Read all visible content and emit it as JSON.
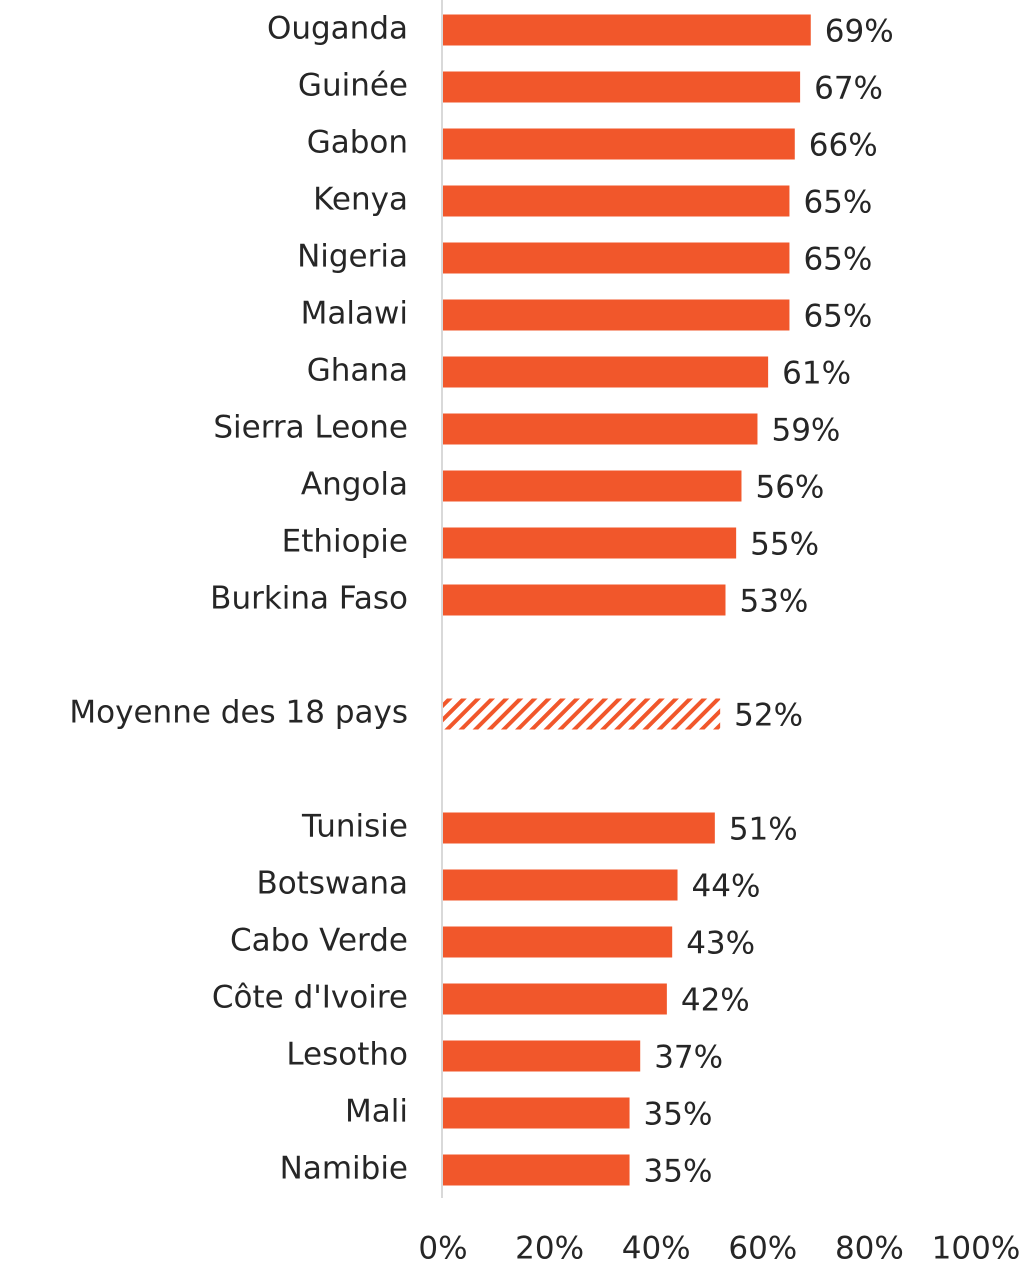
{
  "chart_data": {
    "type": "hbar",
    "categories": [
      "Ouganda",
      "Guinée",
      "Gabon",
      "Kenya",
      "Nigeria",
      "Malawi",
      "Ghana",
      "Sierra Leone",
      "Angola",
      "Ethiopie",
      "Burkina Faso",
      null,
      "Moyenne des 18 pays",
      null,
      "Tunisie",
      "Botswana",
      "Cabo Verde",
      "Côte d'Ivoire",
      "Lesotho",
      "Mali",
      "Namibie"
    ],
    "values": [
      69,
      67,
      66,
      65,
      65,
      65,
      61,
      59,
      56,
      55,
      53,
      null,
      52,
      null,
      51,
      44,
      43,
      42,
      37,
      35,
      35
    ],
    "value_labels": [
      "69%",
      "67%",
      "66%",
      "65%",
      "65%",
      "65%",
      "61%",
      "59%",
      "56%",
      "55%",
      "53%",
      null,
      "52%",
      null,
      "51%",
      "44%",
      "43%",
      "42%",
      "37%",
      "35%",
      "35%"
    ],
    "color": "#f1572b",
    "hatched_categories": [
      "Moyenne des 18 pays"
    ],
    "xlim": [
      0,
      100
    ],
    "xticks": [
      {
        "value": 0,
        "label": "0%"
      },
      {
        "value": 20,
        "label": "20%"
      },
      {
        "value": 40,
        "label": "40%"
      },
      {
        "value": 60,
        "label": "60%"
      },
      {
        "value": 80,
        "label": "80%"
      },
      {
        "value": 100,
        "label": "100%"
      }
    ],
    "grid": false
  }
}
